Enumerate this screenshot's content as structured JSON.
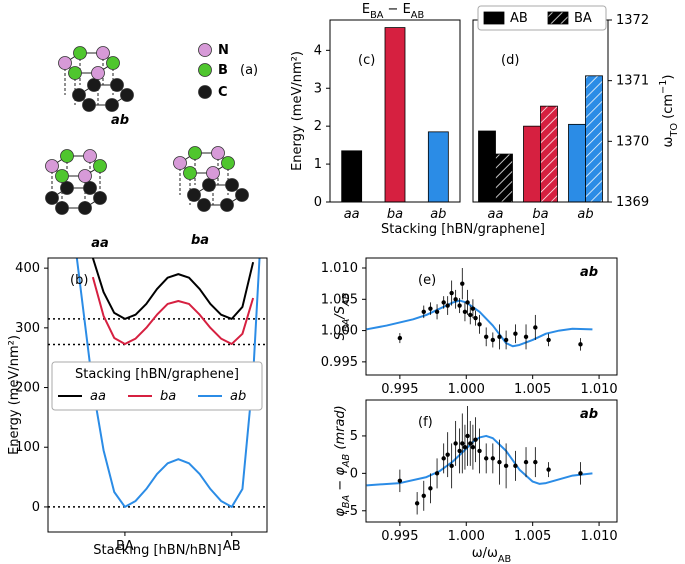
{
  "structure": {
    "panel_label": "(a)",
    "species": [
      "N",
      "B",
      "C"
    ],
    "stackings": [
      "ab",
      "aa",
      "ba"
    ]
  },
  "chart_data": [
    {
      "type": "line",
      "panel_label": "(b)",
      "xlabel": "Stacking [hBN/hBN]",
      "ylabel": "Energy (meV/nm²)",
      "xlim": [
        -0.72,
        1.33
      ],
      "ylim": [
        -42,
        417
      ],
      "xticks": [
        {
          "value": 0,
          "label": "BA"
        },
        {
          "value": 1,
          "label": "AB"
        }
      ],
      "yticks": [
        0,
        100,
        200,
        300,
        400
      ],
      "hlines": [
        315,
        272,
        0
      ],
      "legend_title": "Stacking [hBN/graphene]",
      "series": [
        {
          "name": "aa",
          "color": "#000000",
          "x": [
            -0.3,
            -0.2,
            -0.1,
            0,
            0.1,
            0.2,
            0.3,
            0.4,
            0.5,
            0.6,
            0.7,
            0.8,
            0.9,
            1,
            1.1,
            1.2
          ],
          "values": [
            417,
            360,
            325,
            315,
            322,
            340,
            365,
            384,
            390,
            384,
            365,
            340,
            322,
            315,
            335,
            410
          ]
        },
        {
          "name": "ba",
          "color": "#d62040",
          "x": [
            -0.3,
            -0.2,
            -0.1,
            0,
            0.1,
            0.2,
            0.3,
            0.4,
            0.5,
            0.6,
            0.7,
            0.8,
            0.9,
            1,
            1.1,
            1.2
          ],
          "values": [
            385,
            320,
            283,
            273,
            282,
            300,
            322,
            340,
            345,
            340,
            322,
            300,
            282,
            273,
            290,
            350
          ]
        },
        {
          "name": "ab",
          "color": "#2b8ce6",
          "x": [
            -0.45,
            -0.3,
            -0.2,
            -0.1,
            0,
            0.1,
            0.2,
            0.3,
            0.4,
            0.5,
            0.6,
            0.7,
            0.8,
            0.9,
            1,
            1.1,
            1.2,
            1.26
          ],
          "values": [
            417,
            200,
            95,
            25,
            0,
            10,
            30,
            55,
            73,
            80,
            73,
            55,
            30,
            10,
            0,
            30,
            220,
            417
          ]
        }
      ]
    },
    {
      "type": "bar",
      "panel_label": "(c)",
      "title": "E_{BA} − E_{AB}",
      "ylabel": "Energy (meV/nm²)",
      "categories": [
        "aa",
        "ba",
        "ab"
      ],
      "values": [
        1.35,
        4.6,
        1.85
      ],
      "colors": [
        "#000000",
        "#d62040",
        "#2b8ce6"
      ],
      "ylim": [
        0,
        4.8
      ],
      "yticks": [
        0,
        1,
        2,
        3,
        4
      ]
    },
    {
      "type": "grouped_bar",
      "panel_label": "(d)",
      "xlabel": "Stacking [hBN/graphene]",
      "ylabel": "ω_{TO} (cm^{−1})",
      "categories": [
        "aa",
        "ba",
        "ab"
      ],
      "colors": [
        "#000000",
        "#d62040",
        "#2b8ce6"
      ],
      "series": [
        {
          "name": "AB",
          "color": "#000000",
          "hatch": false,
          "values": [
            1370.17,
            1370.25,
            1370.28
          ]
        },
        {
          "name": "BA",
          "color": "#000000",
          "hatch": true,
          "values": [
            1369.79,
            1370.58,
            1371.08
          ]
        }
      ],
      "ylim": [
        1369,
        1372
      ],
      "yticks": [
        1369,
        1370,
        1371,
        1372
      ],
      "axis_side": "right"
    },
    {
      "type": "scatter",
      "panel_label": "(e)",
      "annotation": "ab",
      "ylabel": "S_{BA}/S_{AB}",
      "xlim": [
        0.99245,
        1.01135
      ],
      "ylim": [
        0.9929,
        1.0116
      ],
      "xticks": [
        0.995,
        {
          "value": 1.0,
          "label": "1.000"
        },
        1.005,
        {
          "value": 1.01,
          "label": "1.010"
        }
      ],
      "yticks": [
        0.995,
        {
          "value": 1.0,
          "label": "1.000"
        },
        1.005,
        {
          "value": 1.01,
          "label": "1.010"
        }
      ],
      "points": {
        "color": "#000000",
        "x": [
          0.995,
          0.9968,
          0.9973,
          0.9978,
          0.9983,
          0.9986,
          0.9989,
          0.9992,
          0.9995,
          0.9997,
          0.9999,
          1.0001,
          1.0003,
          1.0005,
          1.0007,
          1.001,
          1.0015,
          1.002,
          1.0025,
          1.003,
          1.0037,
          1.0045,
          1.0052,
          1.0062,
          1.0086
        ],
        "values": [
          0.9988,
          1.003,
          1.0035,
          1.003,
          1.0045,
          1.004,
          1.006,
          1.005,
          1.004,
          1.0075,
          1.003,
          1.0045,
          1.0025,
          1.0035,
          1.002,
          1.001,
          0.999,
          0.9985,
          0.999,
          0.9985,
          0.9995,
          0.999,
          1.0005,
          0.9985,
          0.9978
        ],
        "errors": [
          0.0008,
          0.001,
          0.001,
          0.0012,
          0.001,
          0.0015,
          0.002,
          0.0015,
          0.0012,
          0.0025,
          0.0015,
          0.002,
          0.0015,
          0.0015,
          0.0012,
          0.0015,
          0.0015,
          0.0012,
          0.002,
          0.0015,
          0.0015,
          0.002,
          0.002,
          0.001,
          0.001
        ]
      },
      "fit": {
        "color": "#2b8ce6",
        "x": [
          0.9925,
          0.994,
          0.996,
          0.997,
          0.998,
          0.999,
          0.9995,
          1.0,
          1.001,
          1.002,
          1.003,
          1.0035,
          1.004,
          1.005,
          1.006,
          1.007,
          1.008,
          1.0095
        ],
        "values": [
          1.0002,
          1.0008,
          1.0018,
          1.0025,
          1.0035,
          1.0045,
          1.0048,
          1.0045,
          1.003,
          1.0008,
          0.998,
          0.9975,
          0.9977,
          0.9985,
          0.9995,
          1.0,
          1.0003,
          1.0002
        ]
      }
    },
    {
      "type": "scatter",
      "panel_label": "(f)",
      "annotation": "ab",
      "ylabel": "φ_{BA} − φ_{AB} (mrad)",
      "xlabel": "ω/ω_{AB}",
      "xlim": [
        0.99245,
        1.01135
      ],
      "ylim": [
        -6.5,
        9.8
      ],
      "xticks": [
        0.995,
        {
          "value": 1.0,
          "label": "1.000"
        },
        1.005,
        {
          "value": 1.01,
          "label": "1.010"
        }
      ],
      "yticks": [
        -5,
        0,
        5
      ],
      "points": {
        "color": "#000000",
        "x": [
          0.995,
          0.9963,
          0.9968,
          0.9973,
          0.9978,
          0.9983,
          0.9986,
          0.9989,
          0.9992,
          0.9995,
          0.9997,
          0.9999,
          1.0001,
          1.0003,
          1.0005,
          1.0007,
          1.001,
          1.0015,
          1.002,
          1.0025,
          1.003,
          1.0037,
          1.0045,
          1.0052,
          1.0062,
          1.0086
        ],
        "values": [
          -1,
          -4,
          -3,
          -2,
          0,
          2,
          2.5,
          1,
          4,
          3,
          4,
          3.5,
          5,
          4,
          3.5,
          4.5,
          3,
          2,
          2,
          1.5,
          1,
          1,
          1.5,
          1.5,
          0.5,
          0
        ],
        "errors": [
          1.5,
          1.5,
          2,
          2,
          2,
          2,
          3,
          3,
          3,
          3,
          4,
          3,
          4,
          3,
          3,
          3,
          3,
          2,
          2,
          3,
          3,
          2,
          2,
          2,
          1,
          1.5
        ]
      },
      "fit": {
        "color": "#2b8ce6",
        "x": [
          0.9925,
          0.995,
          0.997,
          0.998,
          0.999,
          1.0,
          1.0005,
          1.001,
          1.0015,
          1.002,
          1.003,
          1.004,
          1.005,
          1.0055,
          1.006,
          1.007,
          1.008,
          1.0095
        ],
        "values": [
          -1.6,
          -1.3,
          -0.5,
          0.3,
          1.6,
          3.3,
          4.2,
          4.8,
          5,
          4.7,
          3,
          0.5,
          -1.1,
          -1.4,
          -1.3,
          -0.8,
          -0.3,
          0
        ]
      }
    }
  ]
}
